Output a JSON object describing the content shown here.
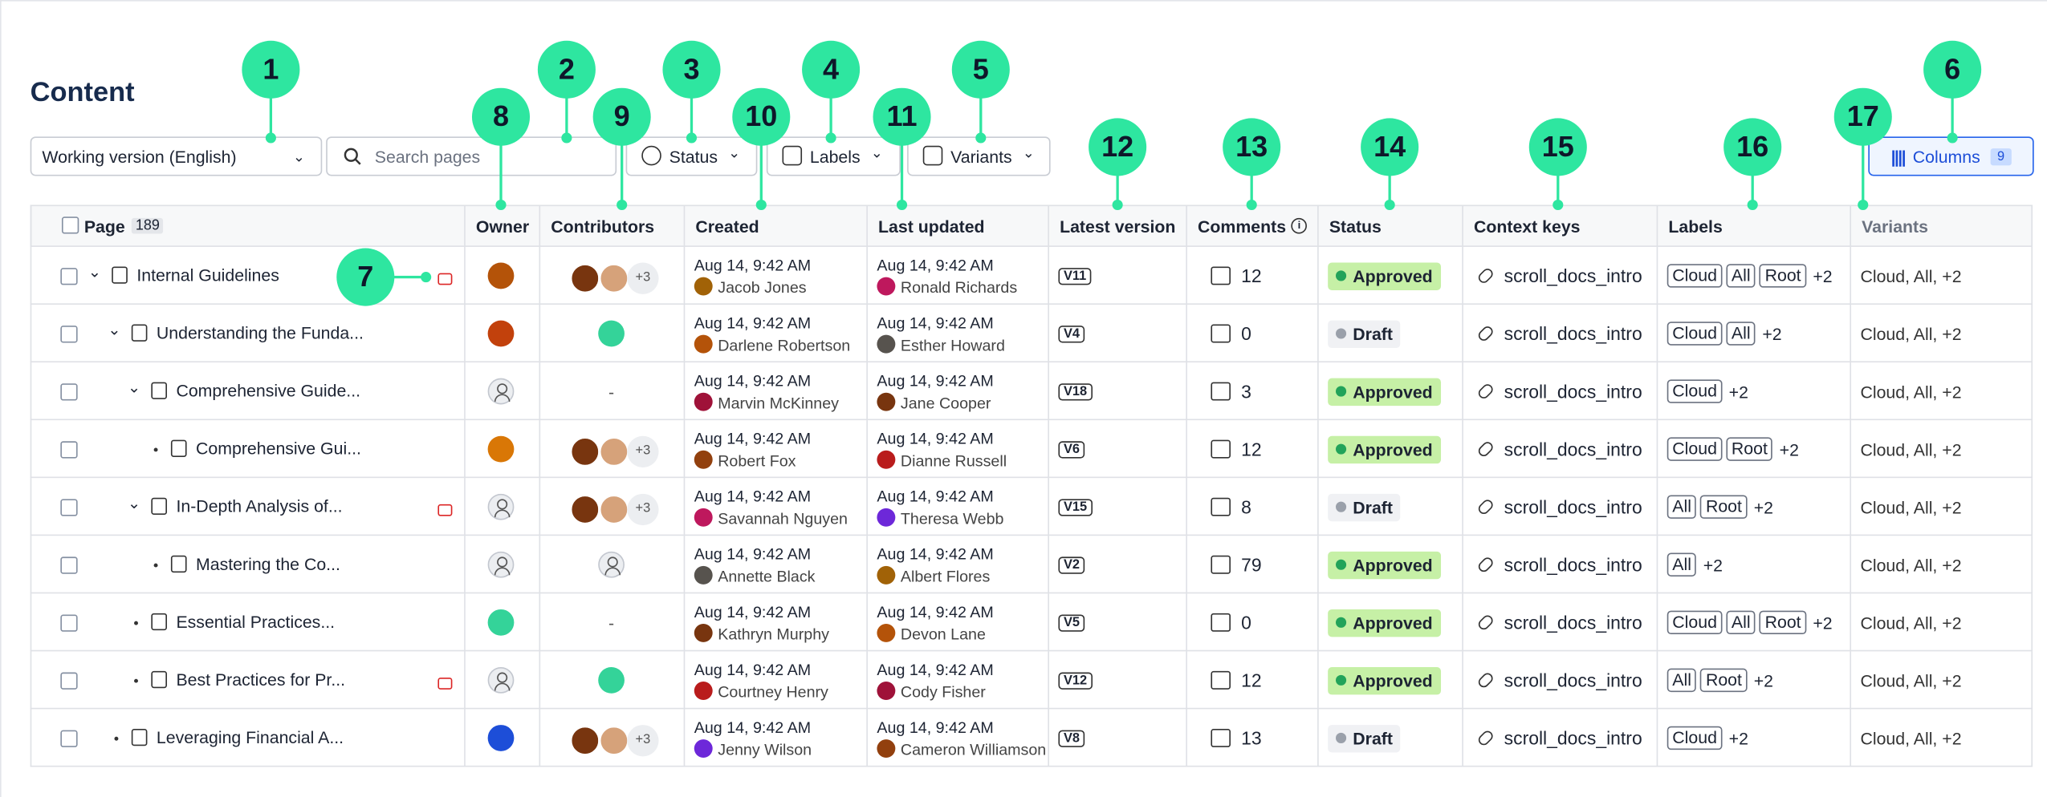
{
  "header": {
    "title": "Content",
    "version_select": "Working version (English)",
    "search_placeholder": "Search pages",
    "filters": [
      "Status",
      "Labels",
      "Variants"
    ],
    "columns_button": {
      "label": "Columns",
      "count": "9"
    }
  },
  "callouts": [
    "1",
    "2",
    "3",
    "4",
    "5",
    "6",
    "7",
    "8",
    "9",
    "10",
    "11",
    "12",
    "13",
    "14",
    "15",
    "16",
    "17"
  ],
  "table": {
    "columns": [
      "Page",
      "Owner",
      "Contributors",
      "Created",
      "Last updated",
      "Latest version",
      "Comments",
      "Status",
      "Context keys",
      "Labels",
      "Variants"
    ],
    "page_count": "189",
    "rows": [
      {
        "title": "Internal Guidelines",
        "contributors": "+3",
        "created_date": "Aug 14, 9:42 AM",
        "created_by": "Jacob Jones",
        "updated_date": "Aug 14, 9:42 AM",
        "updated_by": "Ronald Richards",
        "version": "V11",
        "comments": 12,
        "status": "Approved",
        "context_key": "scroll_docs_intro",
        "labels": [
          "Cloud",
          "All",
          "Root"
        ],
        "labels_more": "+2",
        "variants": "Cloud, All, +2"
      },
      {
        "title": "Understanding the Funda...",
        "created_date": "Aug 14, 9:42 AM",
        "created_by": "Darlene Robertson",
        "updated_date": "Aug 14, 9:42 AM",
        "updated_by": "Esther Howard",
        "version": "V4",
        "comments": 0,
        "status": "Draft",
        "context_key": "scroll_docs_intro",
        "labels": [
          "Cloud",
          "All"
        ],
        "labels_more": "+2",
        "variants": "Cloud, All, +2"
      },
      {
        "title": "Comprehensive Guide...",
        "contributors": "-",
        "created_date": "Aug 14, 9:42 AM",
        "created_by": "Marvin McKinney",
        "updated_date": "Aug 14, 9:42 AM",
        "updated_by": "Jane Cooper",
        "version": "V18",
        "comments": 3,
        "status": "Approved",
        "context_key": "scroll_docs_intro",
        "labels": [
          "Cloud"
        ],
        "labels_more": "+2",
        "variants": "Cloud, All, +2"
      },
      {
        "title": "Comprehensive Gui...",
        "contributors": "+3",
        "created_date": "Aug 14, 9:42 AM",
        "created_by": "Robert Fox",
        "updated_date": "Aug 14, 9:42 AM",
        "updated_by": "Dianne Russell",
        "version": "V6",
        "comments": 12,
        "status": "Approved",
        "context_key": "scroll_docs_intro",
        "labels": [
          "Cloud",
          "Root"
        ],
        "labels_more": "+2",
        "variants": "Cloud, All, +2"
      },
      {
        "title": "In-Depth Analysis of...",
        "contributors": "+3",
        "created_date": "Aug 14, 9:42 AM",
        "created_by": "Savannah Nguyen",
        "updated_date": "Aug 14, 9:42 AM",
        "updated_by": "Theresa Webb",
        "version": "V15",
        "comments": 8,
        "status": "Draft",
        "context_key": "scroll_docs_intro",
        "labels": [
          "All",
          "Root"
        ],
        "labels_more": "+2",
        "variants": "Cloud, All, +2"
      },
      {
        "title": "Mastering the Co...",
        "created_date": "Aug 14, 9:42 AM",
        "created_by": "Annette Black",
        "updated_date": "Aug 14, 9:42 AM",
        "updated_by": "Albert Flores",
        "version": "V2",
        "comments": 79,
        "status": "Approved",
        "context_key": "scroll_docs_intro",
        "labels": [
          "All"
        ],
        "labels_more": "+2",
        "variants": "Cloud, All, +2"
      },
      {
        "title": "Essential Practices...",
        "contributors": "-",
        "created_date": "Aug 14, 9:42 AM",
        "created_by": "Kathryn Murphy",
        "updated_date": "Aug 14, 9:42 AM",
        "updated_by": "Devon Lane",
        "version": "V5",
        "comments": 0,
        "status": "Approved",
        "context_key": "scroll_docs_intro",
        "labels": [
          "Cloud",
          "All",
          "Root"
        ],
        "labels_more": "+2",
        "variants": "Cloud, All, +2"
      },
      {
        "title": "Best Practices for Pr...",
        "created_date": "Aug 14, 9:42 AM",
        "created_by": "Courtney Henry",
        "updated_date": "Aug 14, 9:42 AM",
        "updated_by": "Cody Fisher",
        "version": "V12",
        "comments": 12,
        "status": "Approved",
        "context_key": "scroll_docs_intro",
        "labels": [
          "All",
          "Root"
        ],
        "labels_more": "+2",
        "variants": "Cloud, All, +2"
      },
      {
        "title": "Leveraging Financial A...",
        "contributors": "+3",
        "created_date": "Aug 14, 9:42 AM",
        "created_by": "Jenny Wilson",
        "updated_date": "Aug 14, 9:42 AM",
        "updated_by": "Cameron Williamson",
        "version": "V8",
        "comments": 13,
        "status": "Draft",
        "context_key": "scroll_docs_intro",
        "labels": [
          "Cloud"
        ],
        "labels_more": "+2",
        "variants": "Cloud, All, +2"
      }
    ]
  }
}
